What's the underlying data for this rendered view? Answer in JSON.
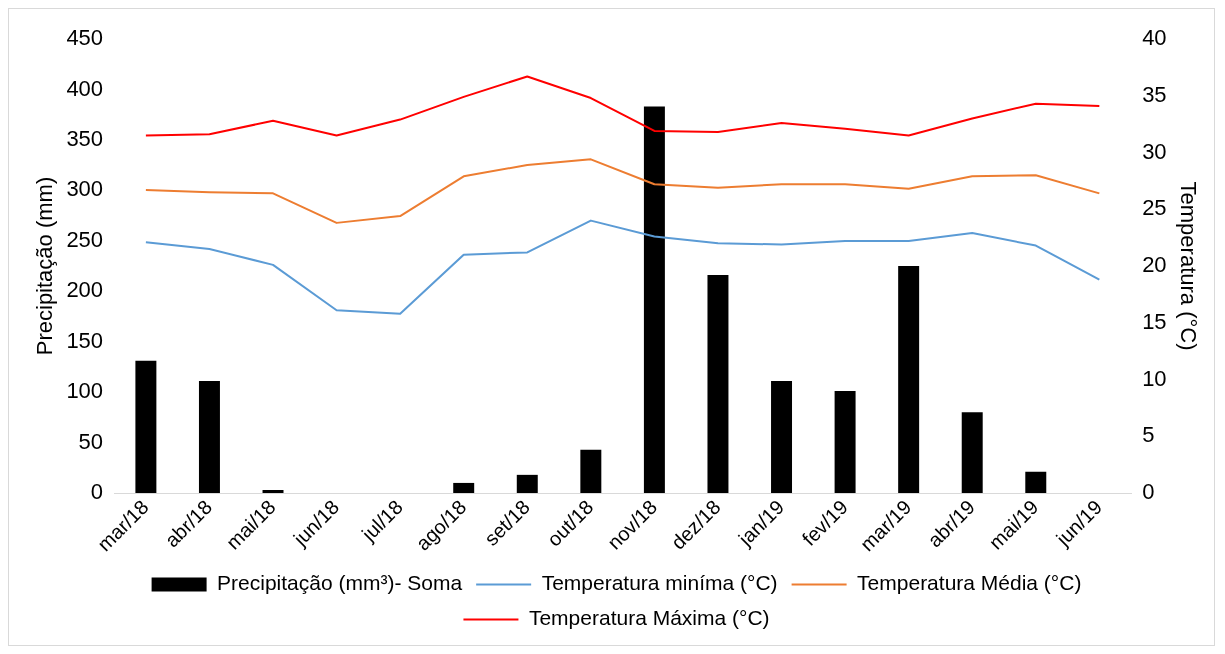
{
  "chart_data": {
    "type": "bar",
    "ylabel": "Precipitação (mm)",
    "y2label": "Temperatura (°C)",
    "categories": [
      "mar/18",
      "abr/18",
      "mai/18",
      "jun/18",
      "jul/18",
      "ago/18",
      "set/18",
      "out/18",
      "nov/18",
      "dez/18",
      "jan/19",
      "fev/19",
      "mar/19",
      "abr/19",
      "mai/19",
      "jun/19"
    ],
    "series": [
      {
        "name": "Precipitação (mm³)- Soma",
        "color": "#000000",
        "values": [
          131,
          111,
          3,
          0,
          0,
          10,
          18,
          43,
          383,
          216,
          111,
          101,
          225,
          80,
          21,
          0
        ]
      },
      {
        "name": "Temperatura miníma (°C)",
        "type": "line",
        "axis": "y2",
        "color": "#5b9bd5",
        "values": [
          22.1,
          21.5,
          20.1,
          16.1,
          15.8,
          21.0,
          21.2,
          24.0,
          22.6,
          22.0,
          21.9,
          22.2,
          22.2,
          22.9,
          21.8,
          18.8
        ]
      },
      {
        "name": "Temperatura Média (°C)",
        "type": "line",
        "axis": "y2",
        "color": "#ed7d31",
        "values": [
          26.7,
          26.5,
          26.4,
          23.8,
          24.4,
          27.9,
          28.9,
          29.4,
          27.2,
          26.9,
          27.2,
          27.2,
          26.8,
          27.9,
          28.0,
          26.4
        ]
      },
      {
        "name": "Temperatura Máxima (°C)",
        "type": "line",
        "axis": "y2",
        "color": "#ff0000",
        "values": [
          31.5,
          31.6,
          32.8,
          31.5,
          32.9,
          34.9,
          36.7,
          34.8,
          31.9,
          31.8,
          32.6,
          32.1,
          31.5,
          33.0,
          34.3,
          34.1
        ]
      }
    ],
    "ylim": [
      0,
      450
    ],
    "yticks": [
      0,
      50,
      100,
      150,
      200,
      250,
      300,
      350,
      400,
      450
    ],
    "y2lim": [
      0,
      40
    ],
    "y2ticks": [
      0,
      5,
      10,
      15,
      20,
      25,
      30,
      35,
      40
    ],
    "grid": false,
    "legend": "bottom",
    "marker": "none",
    "line_style": "solid"
  }
}
